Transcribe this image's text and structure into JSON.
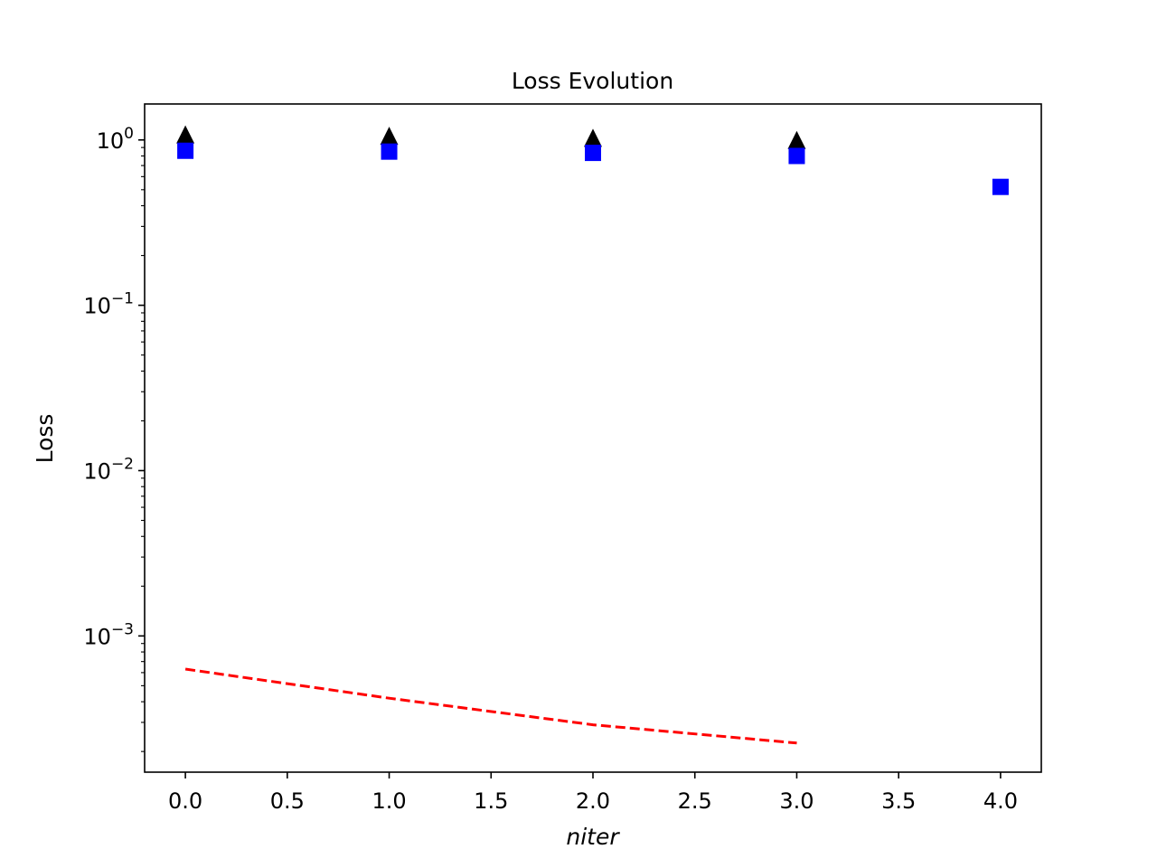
{
  "chart_data": {
    "type": "scatter",
    "title": "Loss Evolution",
    "xlabel": "niter",
    "ylabel": "Loss",
    "xlim": [
      -0.2,
      4.2
    ],
    "ylim": [
      0.00015,
      1.65
    ],
    "yscale": "log",
    "grid": false,
    "x_ticks": [
      {
        "value": 0.0,
        "label": "0.0"
      },
      {
        "value": 0.5,
        "label": "0.5"
      },
      {
        "value": 1.0,
        "label": "1.0"
      },
      {
        "value": 1.5,
        "label": "1.5"
      },
      {
        "value": 2.0,
        "label": "2.0"
      },
      {
        "value": 2.5,
        "label": "2.5"
      },
      {
        "value": 3.0,
        "label": "3.0"
      },
      {
        "value": 3.5,
        "label": "3.5"
      },
      {
        "value": 4.0,
        "label": "4.0"
      }
    ],
    "y_ticks": [
      {
        "value": 1,
        "base": "10",
        "exp": "0"
      },
      {
        "value": 0.1,
        "base": "10",
        "exp": "−1"
      },
      {
        "value": 0.01,
        "base": "10",
        "exp": "−2"
      },
      {
        "value": 0.001,
        "base": "10",
        "exp": "−3"
      }
    ],
    "series": [
      {
        "marker": "triangle",
        "color": "#000000",
        "linestyle": "none",
        "x": [
          0,
          1,
          2,
          3
        ],
        "y": [
          1.08,
          1.06,
          1.03,
          1.0
        ]
      },
      {
        "marker": "square",
        "color": "#0000ff",
        "linestyle": "none",
        "x": [
          0,
          1,
          2,
          3,
          4
        ],
        "y": [
          0.86,
          0.85,
          0.835,
          0.8,
          0.52
        ]
      },
      {
        "marker": "none",
        "color": "#ff0000",
        "linestyle": "dashed",
        "x": [
          0,
          1,
          2,
          3
        ],
        "y": [
          0.00063,
          0.00042,
          0.00029,
          0.000225
        ]
      }
    ]
  }
}
